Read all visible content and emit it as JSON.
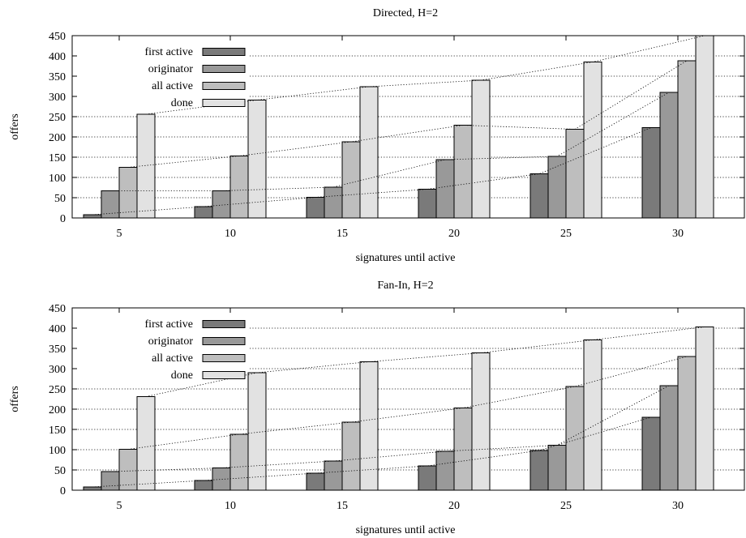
{
  "chart_data": [
    {
      "type": "bar",
      "title": "Directed, H=2",
      "xlabel": "signatures until active",
      "ylabel": "offers",
      "ylim": [
        0,
        450
      ],
      "yticks": [
        0,
        50,
        100,
        150,
        200,
        250,
        300,
        350,
        400,
        450
      ],
      "categories": [
        "5",
        "10",
        "15",
        "20",
        "25",
        "30"
      ],
      "grid": "horizontal dotted",
      "legend_position": "top-left",
      "series": [
        {
          "name": "first active",
          "color": "#7a7a7a",
          "values": [
            8,
            28,
            51,
            71,
            109,
            223
          ]
        },
        {
          "name": "originator",
          "color": "#999999",
          "values": [
            67,
            67,
            76,
            144,
            152,
            310
          ]
        },
        {
          "name": "all active",
          "color": "#bebebe",
          "values": [
            125,
            153,
            188,
            229,
            219,
            388
          ]
        },
        {
          "name": "done",
          "color": "#e2e2e2",
          "values": [
            256,
            291,
            324,
            340,
            385,
            450
          ]
        }
      ]
    },
    {
      "type": "bar",
      "title": "Fan-In, H=2",
      "xlabel": "signatures until active",
      "ylabel": "offers",
      "ylim": [
        0,
        450
      ],
      "yticks": [
        0,
        50,
        100,
        150,
        200,
        250,
        300,
        350,
        400,
        450
      ],
      "categories": [
        "5",
        "10",
        "15",
        "20",
        "25",
        "30"
      ],
      "grid": "horizontal dotted",
      "legend_position": "top-left",
      "series": [
        {
          "name": "first active",
          "color": "#7a7a7a",
          "values": [
            8,
            24,
            42,
            60,
            98,
            180
          ]
        },
        {
          "name": "originator",
          "color": "#999999",
          "values": [
            46,
            55,
            72,
            96,
            111,
            258
          ]
        },
        {
          "name": "all active",
          "color": "#bebebe",
          "values": [
            101,
            138,
            168,
            203,
            256,
            330
          ]
        },
        {
          "name": "done",
          "color": "#e2e2e2",
          "values": [
            231,
            290,
            317,
            339,
            371,
            403
          ]
        }
      ]
    }
  ]
}
